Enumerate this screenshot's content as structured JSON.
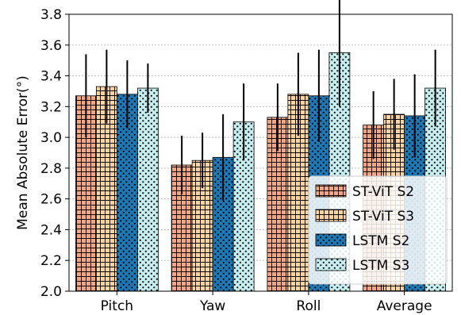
{
  "chart_data": {
    "type": "bar",
    "title": "",
    "xlabel": "",
    "ylabel": "Mean Absolute Error(°)",
    "ylim": [
      2.0,
      3.8
    ],
    "yticks": [
      "2.0",
      "2.2",
      "2.4",
      "2.6",
      "2.8",
      "3.0",
      "3.2",
      "3.4",
      "3.6",
      "3.8"
    ],
    "grid": "horizontal dotted",
    "legend_position": "lower-right",
    "categories": [
      "Pitch",
      "Yaw",
      "Roll",
      "Average"
    ],
    "series": [
      {
        "name": "ST-ViT S2",
        "values": [
          3.27,
          2.82,
          3.13,
          3.08
        ],
        "error": [
          0.27,
          0.19,
          0.22,
          0.22
        ],
        "color": "#f4a582",
        "pattern": "grid"
      },
      {
        "name": "ST-ViT S3",
        "values": [
          3.33,
          2.85,
          3.28,
          3.15
        ],
        "error": [
          0.24,
          0.18,
          0.27,
          0.23
        ],
        "color": "#fdd49e",
        "pattern": "grid"
      },
      {
        "name": "LSTM S2",
        "values": [
          3.28,
          2.87,
          3.27,
          3.14
        ],
        "error": [
          0.22,
          0.28,
          0.3,
          0.27
        ],
        "color": "#1f78b4",
        "pattern": "dots"
      },
      {
        "name": "LSTM S3",
        "values": [
          3.32,
          3.1,
          3.55,
          3.32
        ],
        "error": [
          0.16,
          0.25,
          0.35,
          0.25
        ],
        "color": "#c6eef0",
        "pattern": "dots"
      }
    ]
  }
}
